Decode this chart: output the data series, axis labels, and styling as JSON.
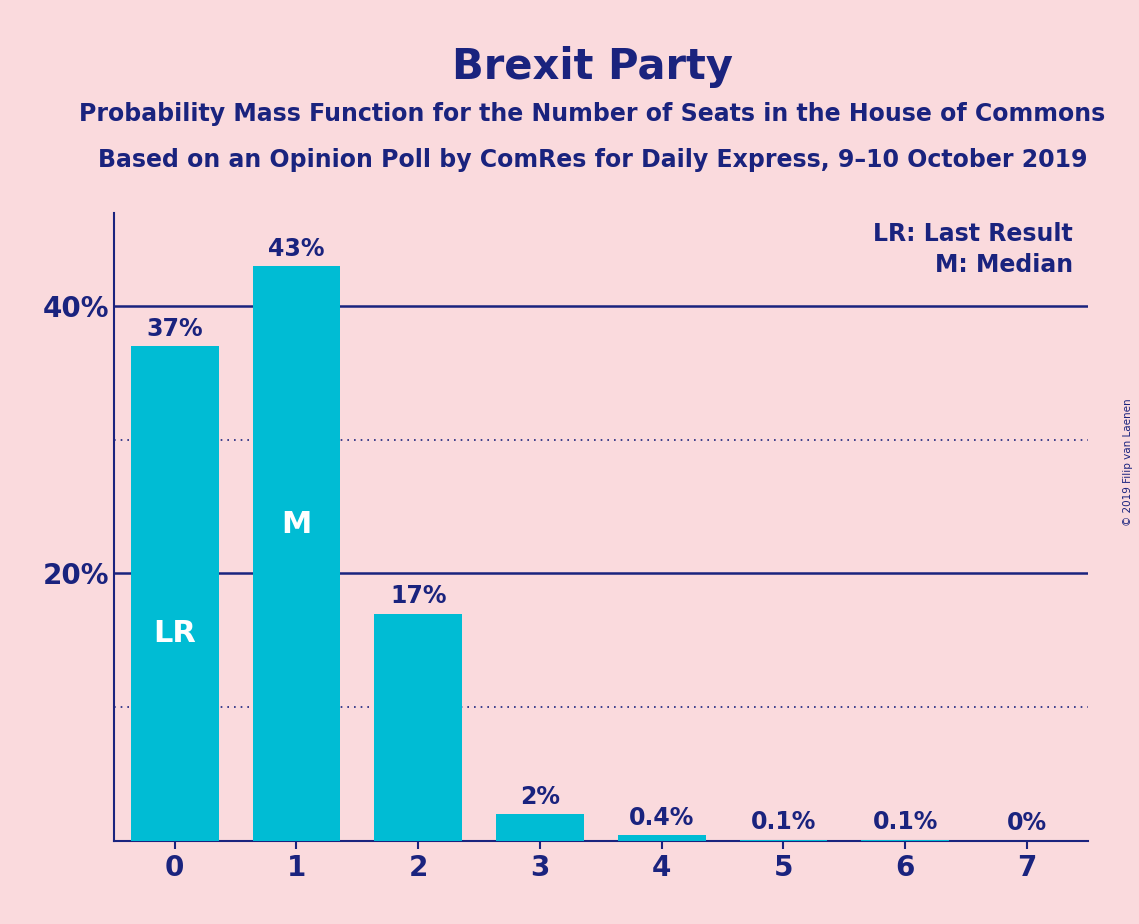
{
  "title": "Brexit Party",
  "subtitle1": "Probability Mass Function for the Number of Seats in the House of Commons",
  "subtitle2": "Based on an Opinion Poll by ComRes for Daily Express, 9–10 October 2019",
  "copyright": "© 2019 Filip van Laenen",
  "categories": [
    0,
    1,
    2,
    3,
    4,
    5,
    6,
    7
  ],
  "values": [
    37,
    43,
    17,
    2,
    0.4,
    0.1,
    0.1,
    0
  ],
  "bar_labels": [
    "37%",
    "43%",
    "17%",
    "2%",
    "0.4%",
    "0.1%",
    "0.1%",
    "0%"
  ],
  "bar_color": "#00BCD4",
  "background_color": "#FADADD",
  "title_color": "#1a237e",
  "bar_label_color_inside": "#ffffff",
  "bar_label_color_outside": "#1a237e",
  "lr_bar_index": 0,
  "m_bar_index": 1,
  "hline_solid_values": [
    40,
    20
  ],
  "hline_dotted_values": [
    30,
    10
  ],
  "hline_color": "#1a237e",
  "ylim": [
    0,
    47
  ],
  "xlim": [
    -0.5,
    7.5
  ],
  "legend_lr": "LR: Last Result",
  "legend_m": "M: Median",
  "title_fontsize": 30,
  "subtitle_fontsize": 17,
  "legend_fontsize": 17,
  "bar_label_fontsize": 17,
  "lr_m_fontsize": 22,
  "ytick_fontsize": 20,
  "xtick_fontsize": 20,
  "bar_width": 0.72
}
